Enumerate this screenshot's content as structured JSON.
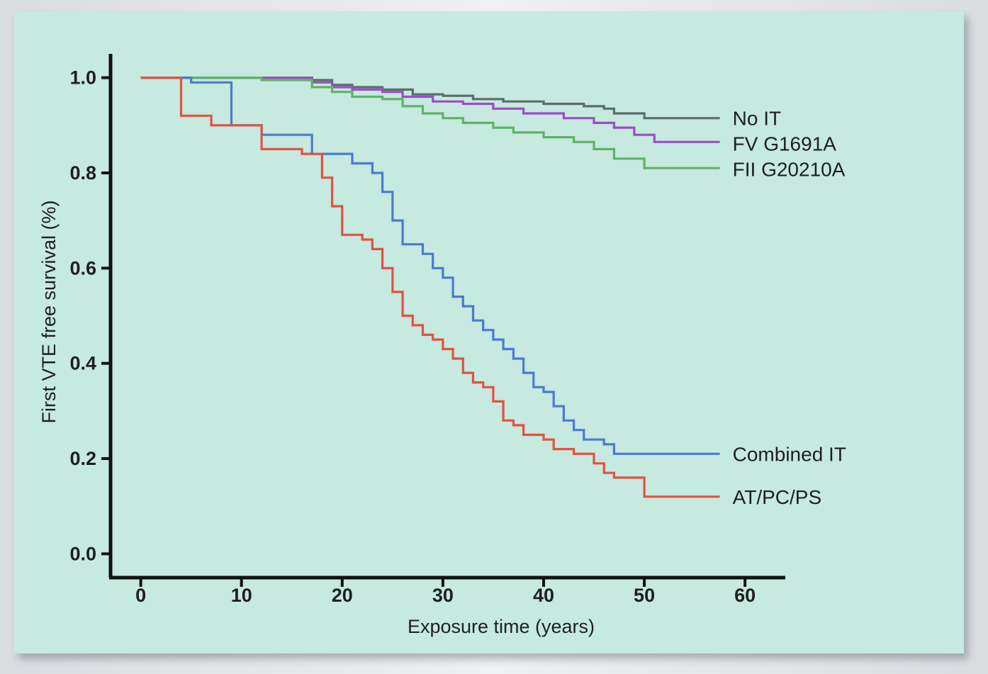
{
  "chart_data": {
    "type": "line",
    "title": "",
    "xlabel": "Exposure time (years)",
    "ylabel": "First VTE free survival (%)",
    "xlim": [
      -3,
      64
    ],
    "ylim": [
      -0.05,
      1.05
    ],
    "x_ticks": [
      0,
      10,
      20,
      30,
      40,
      50,
      60
    ],
    "x_tick_labels": [
      "0",
      "10",
      "20",
      "30",
      "40",
      "50",
      "60"
    ],
    "y_ticks": [
      0.0,
      0.2,
      0.4,
      0.6,
      0.8,
      1.0
    ],
    "y_tick_labels": [
      "0.0",
      "0.2",
      "0.4",
      "0.6",
      "0.8",
      "1.0"
    ],
    "grid": false,
    "legend": "inline labels at right end of each curve",
    "step": true,
    "series": [
      {
        "name": "No IT",
        "color": "#5a6e6a",
        "points": [
          [
            0,
            1.0
          ],
          [
            12,
            1.0
          ],
          [
            17,
            0.995
          ],
          [
            19,
            0.985
          ],
          [
            21,
            0.98
          ],
          [
            24,
            0.975
          ],
          [
            27,
            0.965
          ],
          [
            30,
            0.962
          ],
          [
            33,
            0.955
          ],
          [
            36,
            0.95
          ],
          [
            40,
            0.945
          ],
          [
            44,
            0.94
          ],
          [
            46,
            0.935
          ],
          [
            47,
            0.925
          ],
          [
            50,
            0.915
          ],
          [
            57.5,
            0.915
          ]
        ]
      },
      {
        "name": "FV G1691A",
        "color": "#9a4fc2",
        "points": [
          [
            0,
            1.0
          ],
          [
            12,
            1.0
          ],
          [
            17,
            0.99
          ],
          [
            19,
            0.98
          ],
          [
            21,
            0.975
          ],
          [
            24,
            0.97
          ],
          [
            26,
            0.96
          ],
          [
            29,
            0.95
          ],
          [
            32,
            0.945
          ],
          [
            35,
            0.935
          ],
          [
            38,
            0.925
          ],
          [
            42,
            0.915
          ],
          [
            45,
            0.905
          ],
          [
            47,
            0.895
          ],
          [
            49,
            0.88
          ],
          [
            51,
            0.865
          ],
          [
            57.5,
            0.865
          ]
        ]
      },
      {
        "name": "FII G20210A",
        "color": "#5fb368",
        "points": [
          [
            0,
            1.0
          ],
          [
            12,
            0.995
          ],
          [
            17,
            0.98
          ],
          [
            19,
            0.97
          ],
          [
            21,
            0.96
          ],
          [
            24,
            0.955
          ],
          [
            26,
            0.94
          ],
          [
            28,
            0.925
          ],
          [
            30,
            0.915
          ],
          [
            32,
            0.905
          ],
          [
            35,
            0.895
          ],
          [
            37,
            0.885
          ],
          [
            40,
            0.875
          ],
          [
            43,
            0.865
          ],
          [
            45,
            0.85
          ],
          [
            47,
            0.83
          ],
          [
            50,
            0.81
          ],
          [
            57.5,
            0.81
          ]
        ]
      },
      {
        "name": "Combined IT",
        "color": "#4a7bd0",
        "points": [
          [
            0,
            1.0
          ],
          [
            5,
            0.99
          ],
          [
            9,
            0.9
          ],
          [
            12,
            0.88
          ],
          [
            17,
            0.84
          ],
          [
            21,
            0.82
          ],
          [
            23,
            0.8
          ],
          [
            24,
            0.76
          ],
          [
            25,
            0.7
          ],
          [
            26,
            0.65
          ],
          [
            28,
            0.63
          ],
          [
            29,
            0.6
          ],
          [
            30,
            0.58
          ],
          [
            31,
            0.54
          ],
          [
            32,
            0.52
          ],
          [
            33,
            0.49
          ],
          [
            34,
            0.47
          ],
          [
            35,
            0.45
          ],
          [
            36,
            0.43
          ],
          [
            37,
            0.41
          ],
          [
            38,
            0.38
          ],
          [
            39,
            0.35
          ],
          [
            40,
            0.34
          ],
          [
            41,
            0.31
          ],
          [
            42,
            0.28
          ],
          [
            43,
            0.26
          ],
          [
            44,
            0.24
          ],
          [
            46,
            0.23
          ],
          [
            47,
            0.21
          ],
          [
            57.5,
            0.21
          ]
        ]
      },
      {
        "name": "AT/PC/PS",
        "color": "#e0533f",
        "points": [
          [
            0,
            1.0
          ],
          [
            4,
            0.92
          ],
          [
            7,
            0.9
          ],
          [
            12,
            0.85
          ],
          [
            16,
            0.84
          ],
          [
            18,
            0.79
          ],
          [
            19,
            0.73
          ],
          [
            20,
            0.67
          ],
          [
            22,
            0.66
          ],
          [
            23,
            0.64
          ],
          [
            24,
            0.6
          ],
          [
            25,
            0.55
          ],
          [
            26,
            0.5
          ],
          [
            27,
            0.48
          ],
          [
            28,
            0.46
          ],
          [
            29,
            0.45
          ],
          [
            30,
            0.43
          ],
          [
            31,
            0.41
          ],
          [
            32,
            0.38
          ],
          [
            33,
            0.36
          ],
          [
            34,
            0.35
          ],
          [
            35,
            0.32
          ],
          [
            36,
            0.28
          ],
          [
            37,
            0.27
          ],
          [
            38,
            0.25
          ],
          [
            40,
            0.24
          ],
          [
            41,
            0.22
          ],
          [
            43,
            0.21
          ],
          [
            45,
            0.19
          ],
          [
            46,
            0.17
          ],
          [
            47,
            0.16
          ],
          [
            50,
            0.12
          ],
          [
            57.5,
            0.12
          ]
        ]
      }
    ]
  }
}
